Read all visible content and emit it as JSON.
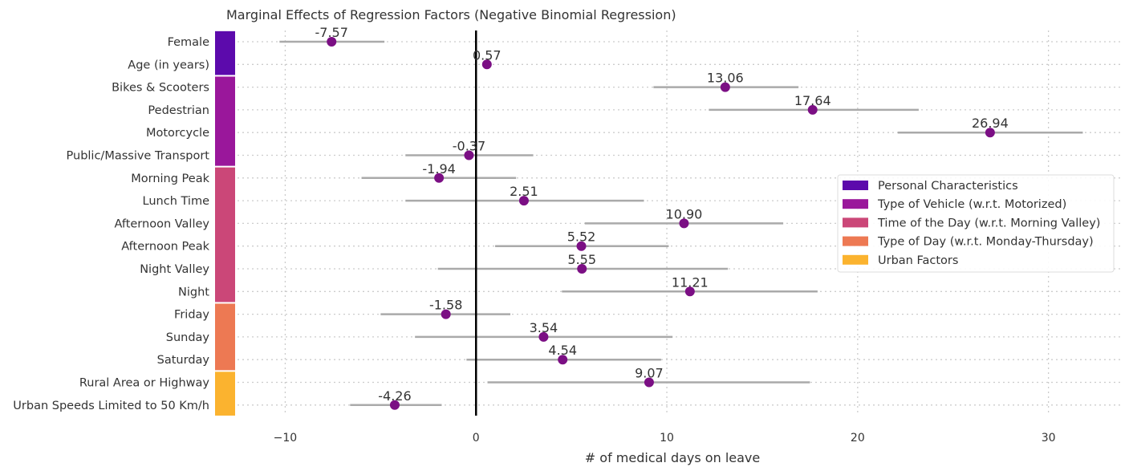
{
  "chart_data": {
    "type": "scatter",
    "title": "Marginal Effects of Regression Factors (Negative Binomial Regression)",
    "xlabel": "# of medical days on leave",
    "ylabel": "",
    "xlim": [
      -12.5,
      33.8
    ],
    "xticks": [
      -10,
      0,
      10,
      20,
      30
    ],
    "xtick_labels": [
      "−10",
      "0",
      "10",
      "20",
      "30"
    ],
    "grid": true,
    "legend_position": "right",
    "reference_line_x": 0,
    "point_color": "#7b0f84",
    "ci_color": "#aaaaaa",
    "groups": [
      {
        "name": "Personal Characteristics",
        "color": "#5c0aac"
      },
      {
        "name": "Type of Vehicle (w.r.t. Motorized)",
        "color": "#9a179b"
      },
      {
        "name": "Time of the Day (w.r.t. Morning Valley)",
        "color": "#cb4778"
      },
      {
        "name": "Type of Day (w.r.t. Monday-Thursday)",
        "color": "#ed7953"
      },
      {
        "name": "Urban Factors",
        "color": "#fbb32f"
      }
    ],
    "factors": [
      {
        "label": "Female",
        "value": -7.57,
        "value_label": "-7.57",
        "ci_low": -10.3,
        "ci_high": -4.8,
        "group": 0
      },
      {
        "label": "Age (in years)",
        "value": 0.57,
        "value_label": "0.57",
        "ci_low": 0.4,
        "ci_high": 0.75,
        "group": 0
      },
      {
        "label": "Bikes & Scooters",
        "value": 13.06,
        "value_label": "13.06",
        "ci_low": 9.3,
        "ci_high": 16.9,
        "group": 1
      },
      {
        "label": "Pedestrian",
        "value": 17.64,
        "value_label": "17.64",
        "ci_low": 12.2,
        "ci_high": 23.2,
        "group": 1
      },
      {
        "label": "Motorcycle",
        "value": 26.94,
        "value_label": "26.94",
        "ci_low": 22.1,
        "ci_high": 31.8,
        "group": 1
      },
      {
        "label": "Public/Massive Transport",
        "value": -0.37,
        "value_label": "-0.37",
        "ci_low": -3.7,
        "ci_high": 3.0,
        "group": 1
      },
      {
        "label": "Morning Peak",
        "value": -1.94,
        "value_label": "-1.94",
        "ci_low": -6.0,
        "ci_high": 2.1,
        "group": 2
      },
      {
        "label": "Lunch Time",
        "value": 2.51,
        "value_label": "2.51",
        "ci_low": -3.7,
        "ci_high": 8.8,
        "group": 2
      },
      {
        "label": "Afternoon Valley",
        "value": 10.9,
        "value_label": "10.90",
        "ci_low": 5.7,
        "ci_high": 16.1,
        "group": 2
      },
      {
        "label": "Afternoon Peak",
        "value": 5.52,
        "value_label": "5.52",
        "ci_low": 1.0,
        "ci_high": 10.1,
        "group": 2
      },
      {
        "label": "Night Valley",
        "value": 5.55,
        "value_label": "5.55",
        "ci_low": -2.0,
        "ci_high": 13.2,
        "group": 2
      },
      {
        "label": "Night",
        "value": 11.21,
        "value_label": "11.21",
        "ci_low": 4.5,
        "ci_high": 17.9,
        "group": 2
      },
      {
        "label": "Friday",
        "value": -1.58,
        "value_label": "-1.58",
        "ci_low": -5.0,
        "ci_high": 1.8,
        "group": 3
      },
      {
        "label": "Sunday",
        "value": 3.54,
        "value_label": "3.54",
        "ci_low": -3.2,
        "ci_high": 10.3,
        "group": 3
      },
      {
        "label": "Saturday",
        "value": 4.54,
        "value_label": "4.54",
        "ci_low": -0.5,
        "ci_high": 9.7,
        "group": 3
      },
      {
        "label": "Rural Area or Highway",
        "value": 9.07,
        "value_label": "9.07",
        "ci_low": 0.6,
        "ci_high": 17.5,
        "group": 4
      },
      {
        "label": "Urban Speeds Limited to 50 Km/h",
        "value": -4.26,
        "value_label": "-4.26",
        "ci_low": -6.6,
        "ci_high": -1.8,
        "group": 4
      }
    ]
  }
}
